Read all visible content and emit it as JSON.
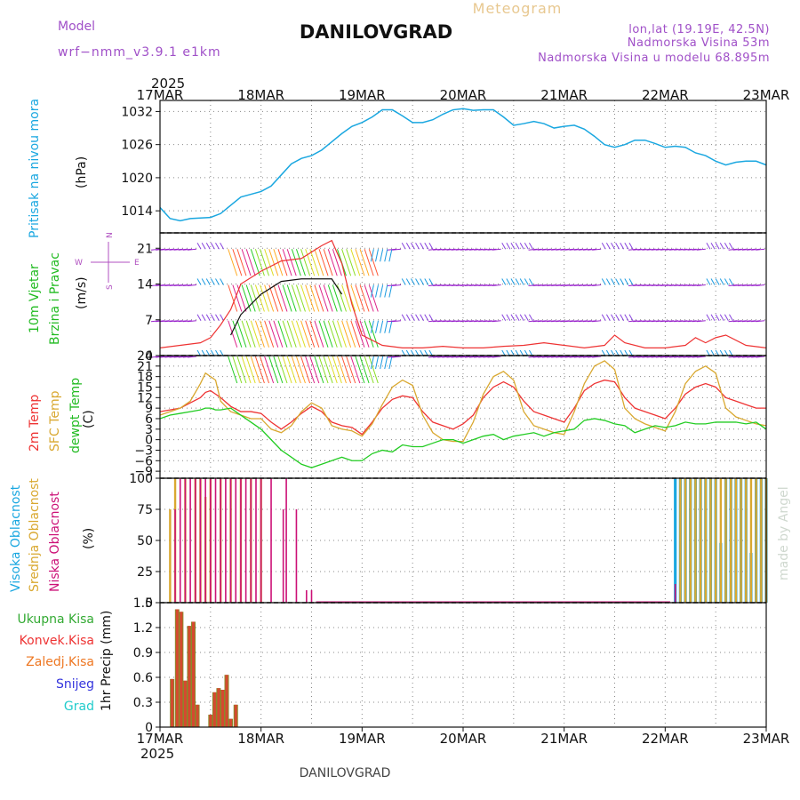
{
  "header": {
    "model_label": "Model",
    "model_name": "wrf−nmm_v3.9.1  e1km",
    "title": "DANILOVGRAD",
    "meteogram": "Meteogram",
    "lonlat": "lon,lat (19.19E, 42.5N)",
    "elevation": "Nadmorska Visina 53m",
    "elevation_model": "Nadmorska Visina u modelu 68.895m",
    "year_top": "2025",
    "year_bottom": "2025",
    "footer_title": "DANILOVGRAD",
    "credit": "made by Angel"
  },
  "colors": {
    "pressure": "#1aa7e0",
    "temp2m": "#ee3333",
    "sfc": "#d9a830",
    "dewpt": "#22cc22",
    "high_cloud": "#1aa7e0",
    "mid_cloud": "#d9a830",
    "low_cloud": "#cc1177",
    "total_precip": "#33aa33",
    "conv_precip": "#ee3333",
    "frz_precip": "#ee7722",
    "snow": "#3333dd",
    "hail": "#22cccc",
    "wind_speed": "#ee3333",
    "wind_gust": "#111111",
    "grid": "#888888"
  },
  "time_axis": {
    "labels": [
      "17MAR",
      "18MAR",
      "19MAR",
      "20MAR",
      "21MAR",
      "22MAR",
      "23MAR"
    ]
  },
  "panels": {
    "pressure": {
      "label": "Pritisak na nivou mora",
      "unit": "(hPa)",
      "ticks": [
        "1032",
        "1026",
        "1020",
        "1014"
      ]
    },
    "wind": {
      "label1": "10m Vjetar",
      "label2": "Brzina i Pravac",
      "unit": "(m/s)",
      "ticks": [
        "21",
        "14",
        "7",
        "0"
      ],
      "compass": {
        "n": "N",
        "s": "S",
        "w": "W",
        "e": "E"
      }
    },
    "temp": {
      "label_2m": "2m Temp",
      "label_sfc": "SFC Temp",
      "label_dew": "dewpt Temp",
      "unit": "(C)",
      "ticks": [
        "24",
        "21",
        "18",
        "15",
        "12",
        "9",
        "6",
        "3",
        "0",
        "−3",
        "−6",
        "−9"
      ]
    },
    "cloud": {
      "label_high": "Visoka Oblacnost",
      "label_mid": "Srednja Oblacnost",
      "label_low": "Niska Oblacnost",
      "unit": "(%)",
      "ticks": [
        "100",
        "75",
        "50",
        "25",
        "0"
      ]
    },
    "precip": {
      "legend": [
        "Ukupna Kisa",
        "Konvek.Kisa",
        "Zaledj.Kisa",
        "Snijeg",
        "Grad"
      ],
      "unit": "1hr Precip (mm)",
      "ticks": [
        "1.5",
        "1.2",
        "0.9",
        "0.6",
        "0.3",
        "0"
      ]
    }
  },
  "chart_data": [
    {
      "type": "line",
      "title": "Pritisak na nivou mora",
      "ylabel": "(hPa)",
      "ylim": [
        1010,
        1034
      ],
      "x_unit": "days since 17MAR 00UTC",
      "x": [
        0,
        0.1,
        0.2,
        0.3,
        0.5,
        0.6,
        0.7,
        0.8,
        0.9,
        1.0,
        1.1,
        1.2,
        1.3,
        1.4,
        1.5,
        1.6,
        1.7,
        1.8,
        1.9,
        2.0,
        2.1,
        2.2,
        2.3,
        2.4,
        2.5,
        2.6,
        2.7,
        2.8,
        2.9,
        3.0,
        3.1,
        3.2,
        3.3,
        3.4,
        3.5,
        3.6,
        3.7,
        3.8,
        3.9,
        4.0,
        4.1,
        4.2,
        4.3,
        4.4,
        4.5,
        4.6,
        4.7,
        4.8,
        4.9,
        5.0,
        5.1,
        5.2,
        5.3,
        5.4,
        5.5,
        5.6,
        5.7,
        5.8,
        5.9,
        6.0
      ],
      "values": [
        1014.6,
        1012.6,
        1012.2,
        1012.6,
        1012.8,
        1013.5,
        1015.0,
        1016.5,
        1017.0,
        1017.5,
        1018.5,
        1020.5,
        1022.5,
        1023.5,
        1024.0,
        1025.0,
        1026.5,
        1028.0,
        1029.3,
        1030.0,
        1031.0,
        1032.3,
        1032.3,
        1031.2,
        1030.0,
        1030.0,
        1030.5,
        1031.5,
        1032.3,
        1032.5,
        1032.2,
        1032.3,
        1032.3,
        1031.0,
        1029.5,
        1029.8,
        1030.2,
        1029.8,
        1029.0,
        1029.3,
        1029.5,
        1028.8,
        1027.5,
        1026.0,
        1025.5,
        1026.0,
        1026.8,
        1026.8,
        1026.2,
        1025.5,
        1025.7,
        1025.5,
        1024.5,
        1024.0,
        1023.0,
        1022.3,
        1022.8,
        1023.0,
        1023.0,
        1022.3
      ]
    },
    {
      "type": "line",
      "title": "10m Vjetar Brzina i Pravac",
      "ylabel": "(m/s)",
      "ylim": [
        0,
        24
      ],
      "x_unit": "days since 17MAR 00UTC",
      "x": [
        0,
        0.2,
        0.4,
        0.5,
        0.6,
        0.7,
        0.8,
        1.0,
        1.2,
        1.4,
        1.6,
        1.7,
        1.8,
        1.9,
        2.0,
        2.2,
        2.4,
        2.6,
        2.8,
        3.0,
        3.2,
        3.4,
        3.6,
        3.8,
        4.0,
        4.2,
        4.4,
        4.5,
        4.6,
        4.8,
        5.0,
        5.2,
        5.3,
        5.4,
        5.5,
        5.6,
        5.8,
        6.0
      ],
      "series": [
        {
          "name": "speed",
          "values": [
            1.5,
            2.0,
            2.5,
            3.5,
            6.0,
            9.0,
            14.0,
            16.5,
            18.5,
            19.0,
            21.5,
            22.5,
            18.0,
            10.0,
            4.0,
            2.0,
            1.5,
            1.5,
            1.8,
            1.5,
            1.5,
            1.8,
            2.0,
            2.5,
            2.0,
            1.5,
            2.0,
            4.0,
            2.5,
            1.5,
            1.5,
            2.0,
            3.5,
            2.5,
            3.5,
            4.0,
            2.0,
            1.5
          ]
        },
        {
          "name": "gust",
          "values": [
            null,
            null,
            null,
            null,
            null,
            4.0,
            8.0,
            12.0,
            14.5,
            15.0,
            15.0,
            15.0,
            12.0,
            null,
            null,
            null,
            null,
            null,
            null,
            null,
            null,
            null,
            null,
            null,
            null,
            null,
            null,
            null,
            null,
            null,
            null,
            null,
            null,
            null,
            null,
            null,
            null,
            null
          ]
        }
      ]
    },
    {
      "type": "line",
      "title": "2m Temp / SFC Temp / dewpt Temp",
      "ylabel": "(C)",
      "ylim": [
        -11,
        24
      ],
      "x_unit": "days since 17MAR 00UTC",
      "x": [
        0,
        0.1,
        0.2,
        0.3,
        0.4,
        0.45,
        0.5,
        0.55,
        0.6,
        0.7,
        0.8,
        0.9,
        1.0,
        1.1,
        1.2,
        1.3,
        1.4,
        1.5,
        1.6,
        1.7,
        1.8,
        1.9,
        2.0,
        2.1,
        2.2,
        2.3,
        2.4,
        2.5,
        2.6,
        2.7,
        2.8,
        2.9,
        3.0,
        3.1,
        3.2,
        3.3,
        3.4,
        3.5,
        3.6,
        3.7,
        3.8,
        3.9,
        4.0,
        4.1,
        4.2,
        4.3,
        4.4,
        4.5,
        4.6,
        4.7,
        4.8,
        4.9,
        5.0,
        5.1,
        5.2,
        5.3,
        5.4,
        5.5,
        5.6,
        5.7,
        5.8,
        5.9,
        6.0
      ],
      "series": [
        {
          "name": "2m Temp",
          "values": [
            8,
            8.5,
            9,
            10.5,
            12,
            13.5,
            14,
            13,
            12,
            9.5,
            8,
            8,
            7.5,
            5,
            3,
            5,
            7.5,
            9.5,
            8,
            5,
            4,
            3.5,
            1.5,
            5,
            9,
            11.5,
            12.5,
            12,
            8,
            5,
            4,
            3,
            4.5,
            7,
            12,
            15,
            16.5,
            15,
            11,
            8,
            7,
            6,
            5,
            9,
            14,
            16,
            17,
            16.5,
            12,
            9,
            8,
            7,
            6,
            9,
            13,
            15,
            16,
            15,
            12,
            11,
            10,
            9,
            9
          ]
        },
        {
          "name": "SFC Temp",
          "values": [
            7,
            8,
            9,
            11,
            16,
            19,
            18,
            17,
            11,
            8,
            7,
            6,
            6,
            3,
            2,
            4,
            8,
            10.5,
            9,
            4,
            3,
            2.5,
            1,
            4.5,
            10,
            15,
            17,
            15.5,
            7,
            2,
            0,
            -0.5,
            -0.5,
            5,
            13,
            18,
            19.5,
            17,
            8,
            4,
            3,
            2,
            1.5,
            8,
            16,
            21,
            22.5,
            20,
            9,
            6,
            4.5,
            3.5,
            2.5,
            8,
            16,
            19.5,
            21,
            19,
            9,
            6.5,
            5.5,
            4.5,
            4
          ]
        },
        {
          "name": "dewpt Temp",
          "values": [
            6,
            7,
            7.5,
            8,
            8.5,
            9,
            9,
            8.5,
            8.5,
            9,
            7,
            5,
            3,
            0,
            -3,
            -5,
            -7,
            -8,
            -7,
            -6,
            -5,
            -6,
            -6,
            -4,
            -3,
            -3.5,
            -1.5,
            -2,
            -2,
            -1,
            0,
            0,
            -1,
            0,
            1,
            1.5,
            0,
            1,
            1.5,
            2,
            1,
            2,
            2.5,
            3,
            5.5,
            6,
            5.5,
            4.5,
            4,
            2,
            3,
            4,
            3.5,
            4,
            5,
            4.5,
            4.5,
            5,
            5,
            5,
            4.5,
            5,
            3
          ]
        }
      ]
    },
    {
      "type": "bar",
      "title": "Visoka / Srednja / Niska Oblacnost",
      "ylabel": "(%)",
      "ylim": [
        0,
        100
      ],
      "x_unit": "days since 17MAR 00UTC",
      "series": [
        {
          "name": "Niska Oblacnost",
          "x": [
            0.15,
            0.2,
            0.25,
            0.3,
            0.35,
            0.4,
            0.45,
            0.5,
            0.55,
            0.6,
            0.65,
            0.7,
            0.75,
            0.8,
            0.85,
            0.9,
            0.95,
            1.0,
            1.1,
            1.22,
            1.25,
            1.35,
            1.45,
            1.5,
            1.55,
            5.1
          ],
          "values": [
            75,
            100,
            100,
            100,
            100,
            100,
            100,
            100,
            100,
            100,
            100,
            100,
            100,
            100,
            100,
            100,
            100,
            100,
            100,
            75,
            100,
            75,
            10,
            10,
            1,
            15
          ]
        },
        {
          "name": "Srednja Oblacnost",
          "x": [
            0.1,
            0.15,
            0.25,
            0.35,
            0.4,
            0.45,
            0.5,
            0.6,
            0.7,
            0.8,
            0.9,
            1.0,
            5.15,
            5.2,
            5.25,
            5.3,
            5.35,
            5.4,
            5.45,
            5.5,
            5.55,
            5.6,
            5.65,
            5.7,
            5.75,
            5.8,
            5.85,
            5.9,
            5.95,
            6.0
          ],
          "values": [
            75,
            100,
            100,
            100,
            100,
            85,
            100,
            100,
            100,
            100,
            100,
            100,
            100,
            100,
            100,
            100,
            100,
            100,
            100,
            100,
            100,
            100,
            100,
            100,
            100,
            100,
            100,
            100,
            100,
            100
          ]
        },
        {
          "name": "Visoka Oblacnost",
          "x": [
            5.1,
            5.15,
            5.2,
            5.25,
            5.3,
            5.35,
            5.4,
            5.45,
            5.5,
            5.55,
            5.6,
            5.65,
            5.7,
            5.75,
            5.8,
            5.85,
            5.9,
            5.95,
            6.0
          ],
          "values": [
            100,
            100,
            100,
            100,
            100,
            100,
            100,
            100,
            100,
            48,
            100,
            100,
            100,
            100,
            100,
            40,
            100,
            100,
            100
          ]
        }
      ]
    },
    {
      "type": "bar",
      "title": "1hr Precip",
      "ylabel": "1hr Precip (mm)",
      "ylim": [
        0,
        1.5
      ],
      "x_unit": "days since 17MAR 00UTC",
      "x": [
        0.12,
        0.17,
        0.21,
        0.25,
        0.29,
        0.33,
        0.37,
        0.5,
        0.54,
        0.58,
        0.62,
        0.66,
        0.7,
        0.75
      ],
      "series": [
        {
          "name": "Ukupna Kisa",
          "values": [
            0.58,
            1.42,
            1.39,
            0.56,
            1.22,
            1.27,
            0.27,
            0.15,
            0.42,
            0.47,
            0.45,
            0.63,
            0.1,
            0.27
          ]
        },
        {
          "name": "Konvek.Kisa",
          "values": [
            0.58,
            1.42,
            1.39,
            0.56,
            1.22,
            1.27,
            0.27,
            0.15,
            0.42,
            0.47,
            0.45,
            0.63,
            0.1,
            0.27
          ]
        }
      ]
    }
  ]
}
